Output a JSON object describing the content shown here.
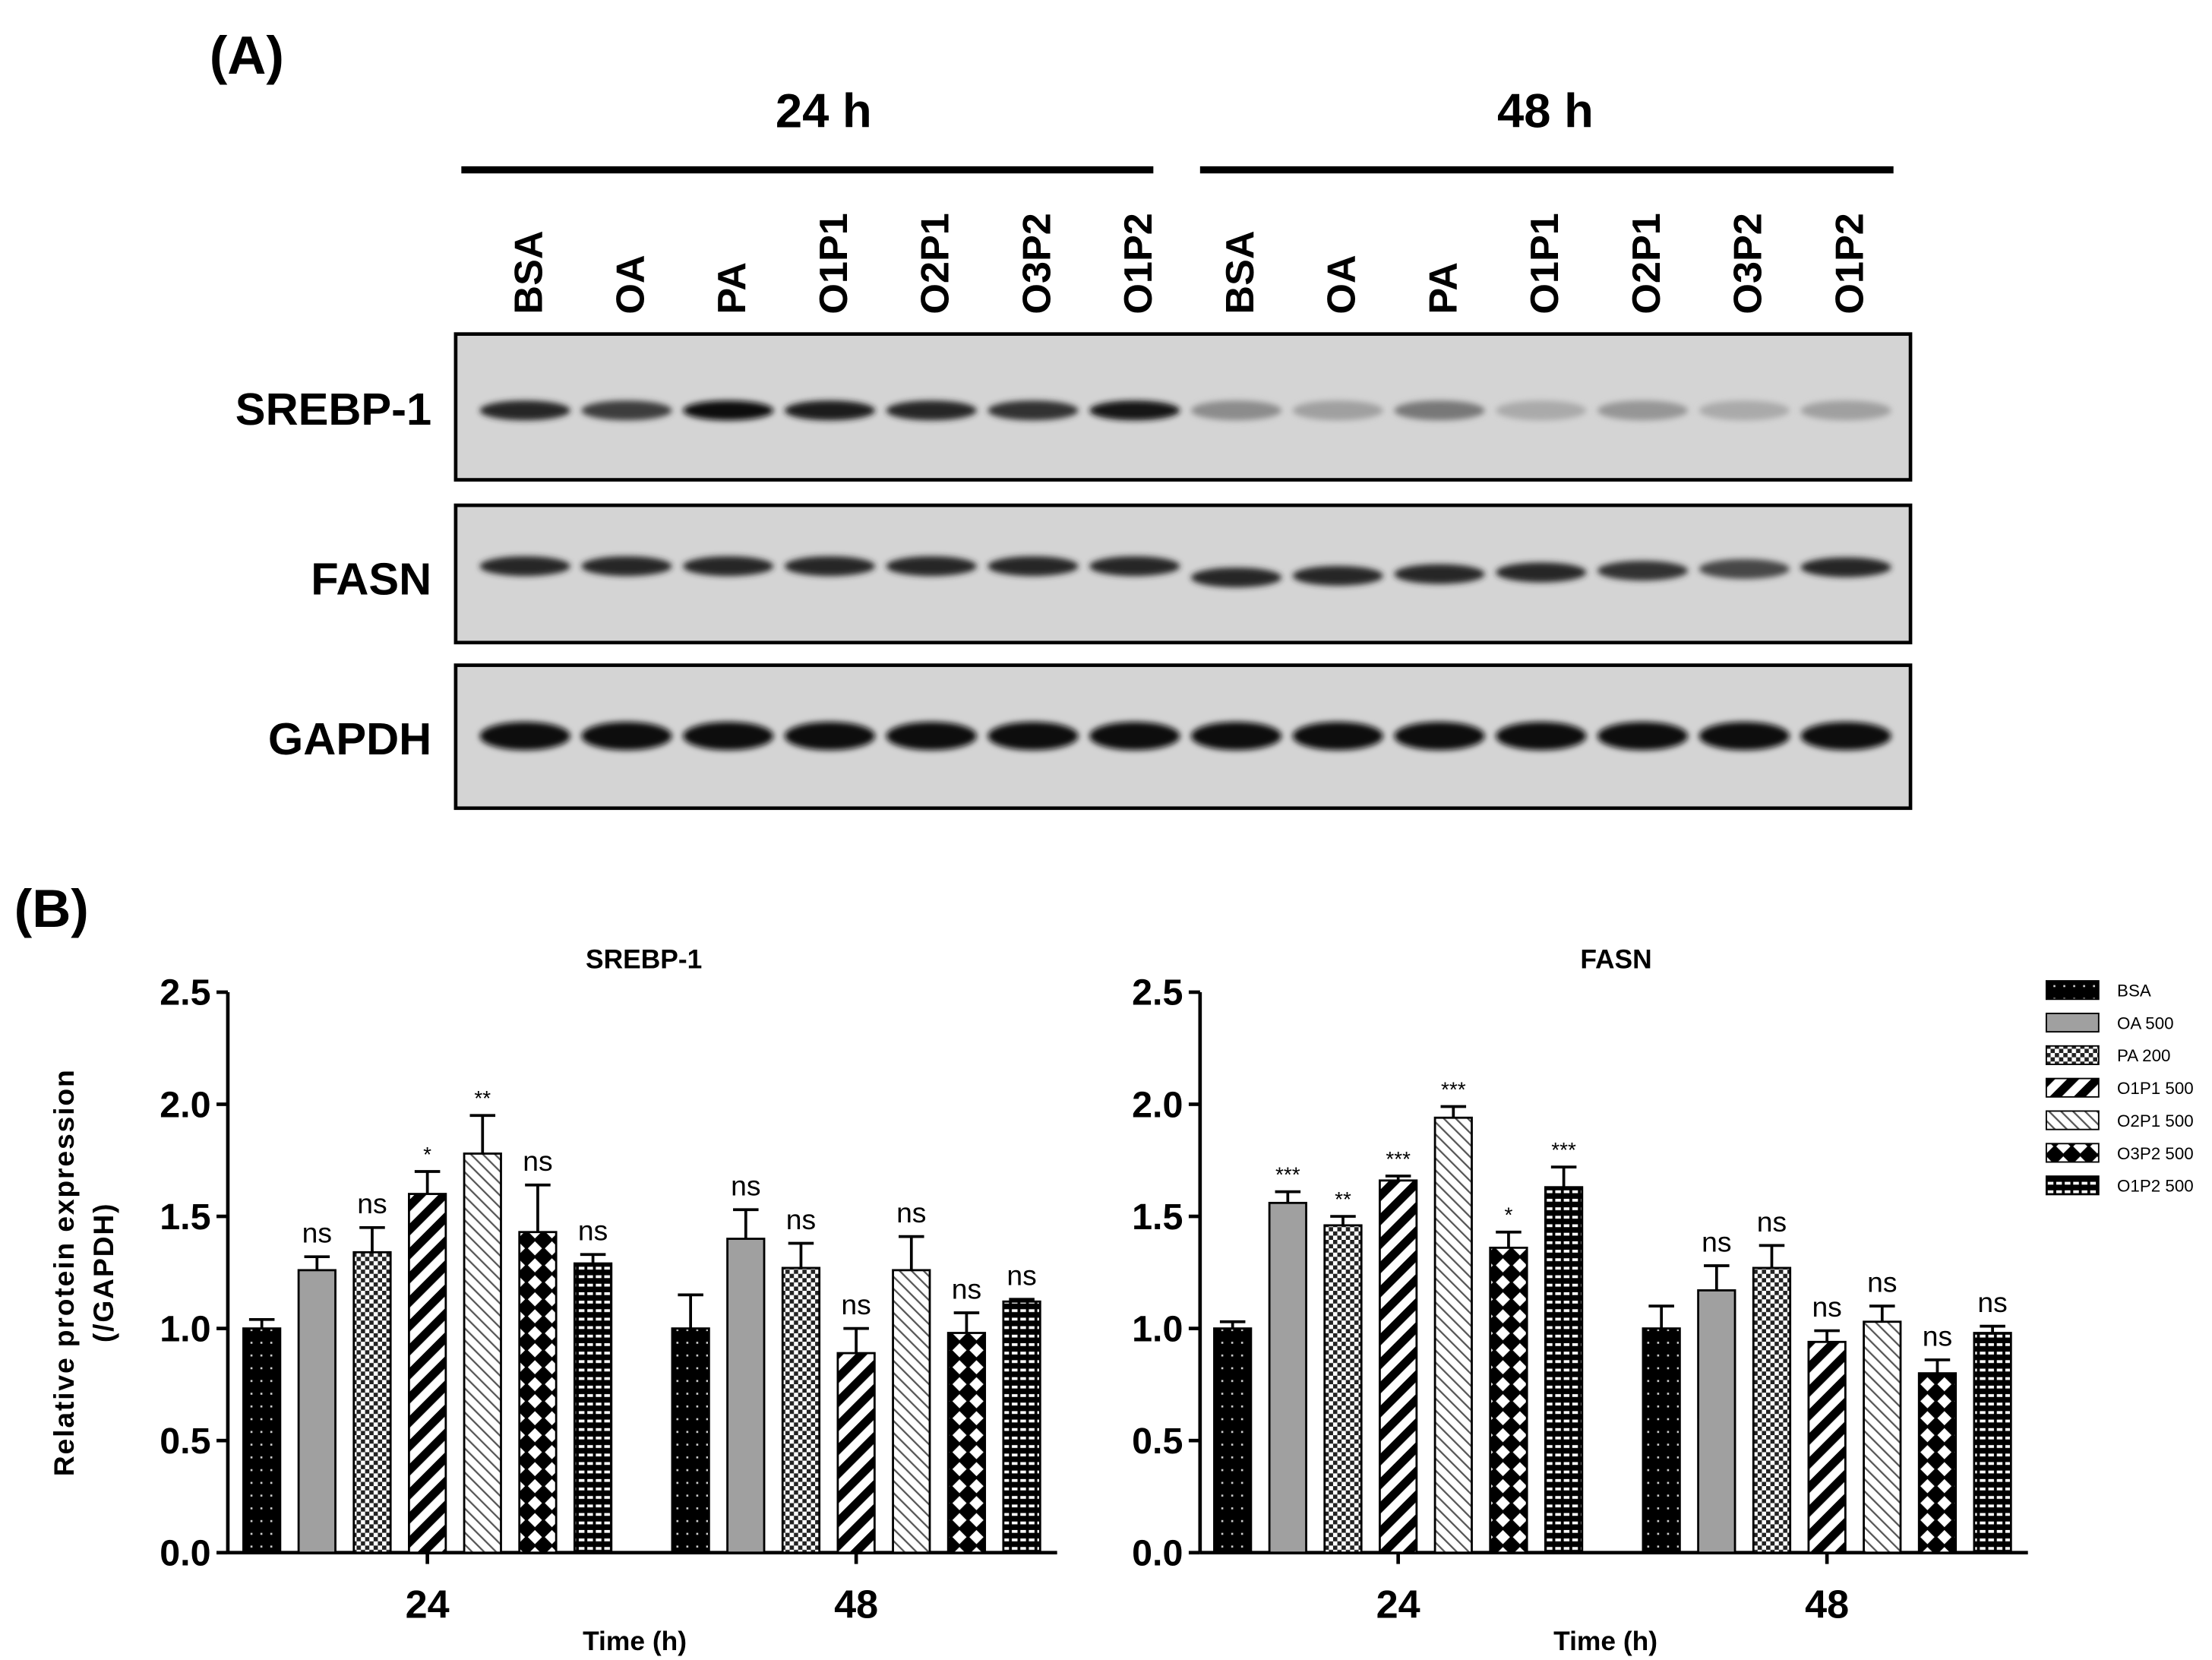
{
  "panel_a": {
    "label": "(A)",
    "groups": [
      {
        "label": "24 h"
      },
      {
        "label": "48 h"
      }
    ],
    "lanes": [
      "BSA",
      "OA",
      "PA",
      "O1P1",
      "O2P1",
      "O3P2",
      "O1P2",
      "BSA",
      "OA",
      "PA",
      "O1P1",
      "O2P1",
      "O3P2",
      "O1P2"
    ],
    "blots": [
      {
        "name": "SREBP-1",
        "intensity": [
          0.85,
          0.75,
          1.0,
          0.9,
          0.85,
          0.8,
          0.95,
          0.35,
          0.25,
          0.45,
          0.2,
          0.3,
          0.2,
          0.25
        ]
      },
      {
        "name": "FASN",
        "intensity": [
          0.85,
          0.85,
          0.85,
          0.85,
          0.85,
          0.85,
          0.85,
          0.85,
          0.85,
          0.85,
          0.85,
          0.8,
          0.7,
          0.85
        ]
      },
      {
        "name": "GAPDH",
        "intensity": [
          1.0,
          1.0,
          1.0,
          1.0,
          1.0,
          1.0,
          1.0,
          1.0,
          1.0,
          1.0,
          1.0,
          1.0,
          1.0,
          1.0
        ]
      }
    ]
  },
  "panel_b": {
    "label": "(B)"
  },
  "chart_data": [
    {
      "type": "bar",
      "title": "SREBP-1",
      "ylabel": "Relative protein expression\n(/GAPDH)",
      "xlabel": "Time (h)",
      "categories": [
        "24",
        "48"
      ],
      "ylim": [
        0,
        2.5
      ],
      "yticks": [
        "0.0",
        "0.5",
        "1.0",
        "1.5",
        "2.0",
        "2.5"
      ],
      "series": [
        {
          "name": "BSA",
          "values": [
            1.0,
            1.0
          ],
          "errors": [
            0.04,
            0.15
          ],
          "sig": [
            "",
            ""
          ]
        },
        {
          "name": "OA 500",
          "values": [
            1.26,
            1.4
          ],
          "errors": [
            0.06,
            0.13
          ],
          "sig": [
            "ns",
            "ns"
          ]
        },
        {
          "name": "PA 200",
          "values": [
            1.34,
            1.27
          ],
          "errors": [
            0.11,
            0.11
          ],
          "sig": [
            "ns",
            "ns"
          ]
        },
        {
          "name": "O1P1 500",
          "values": [
            1.6,
            0.89
          ],
          "errors": [
            0.1,
            0.11
          ],
          "sig": [
            "*",
            "ns"
          ]
        },
        {
          "name": "O2P1 500",
          "values": [
            1.78,
            1.26
          ],
          "errors": [
            0.17,
            0.15
          ],
          "sig": [
            "**",
            "ns"
          ]
        },
        {
          "name": "O3P2 500",
          "values": [
            1.43,
            0.98
          ],
          "errors": [
            0.21,
            0.09
          ],
          "sig": [
            "ns",
            "ns"
          ]
        },
        {
          "name": "O1P2 500",
          "values": [
            1.29,
            1.12
          ],
          "errors": [
            0.04,
            0.01
          ],
          "sig": [
            "ns",
            "ns"
          ]
        }
      ]
    },
    {
      "type": "bar",
      "title": "FASN",
      "xlabel": "Time (h)",
      "categories": [
        "24",
        "48"
      ],
      "ylim": [
        0,
        2.5
      ],
      "yticks": [
        "0.0",
        "0.5",
        "1.0",
        "1.5",
        "2.0",
        "2.5"
      ],
      "series": [
        {
          "name": "BSA",
          "values": [
            1.0,
            1.0
          ],
          "errors": [
            0.03,
            0.1
          ],
          "sig": [
            "",
            ""
          ]
        },
        {
          "name": "OA 500",
          "values": [
            1.56,
            1.17
          ],
          "errors": [
            0.05,
            0.11
          ],
          "sig": [
            "***",
            "ns"
          ]
        },
        {
          "name": "PA 200",
          "values": [
            1.46,
            1.27
          ],
          "errors": [
            0.04,
            0.1
          ],
          "sig": [
            "**",
            "ns"
          ]
        },
        {
          "name": "O1P1 500",
          "values": [
            1.66,
            0.94
          ],
          "errors": [
            0.02,
            0.05
          ],
          "sig": [
            "***",
            "ns"
          ]
        },
        {
          "name": "O2P1 500",
          "values": [
            1.94,
            1.03
          ],
          "errors": [
            0.05,
            0.07
          ],
          "sig": [
            "***",
            "ns"
          ]
        },
        {
          "name": "O3P2 500",
          "values": [
            1.36,
            0.8
          ],
          "errors": [
            0.07,
            0.06
          ],
          "sig": [
            "*",
            "ns"
          ]
        },
        {
          "name": "O1P2 500",
          "values": [
            1.63,
            0.98
          ],
          "errors": [
            0.09,
            0.03
          ],
          "sig": [
            "***",
            "ns"
          ]
        }
      ]
    }
  ],
  "legend": {
    "placement": "right",
    "entries": [
      {
        "label": "BSA",
        "pattern": "dots"
      },
      {
        "label": "OA 500",
        "pattern": "gray"
      },
      {
        "label": "PA 200",
        "pattern": "check"
      },
      {
        "label": "O1P1 500",
        "pattern": "thickdiag"
      },
      {
        "label": "O2P1 500",
        "pattern": "thindiag"
      },
      {
        "label": "O3P2 500",
        "pattern": "xhatch"
      },
      {
        "label": "O1P2 500",
        "pattern": "brick"
      }
    ]
  }
}
